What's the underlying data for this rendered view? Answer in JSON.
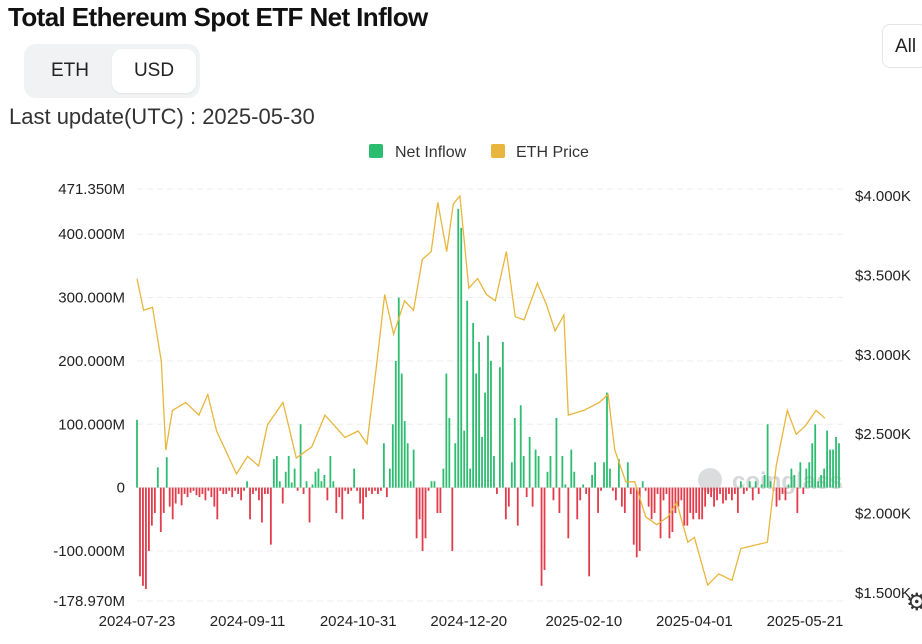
{
  "header": {
    "title": "Total Ethereum Spot ETF Net Inflow",
    "range_button": "All",
    "unit_toggle": [
      "ETH",
      "USD"
    ],
    "unit_selected": "USD",
    "last_update": "Last update(UTC) : 2025-05-30",
    "settings_icon": "gear-icon"
  },
  "watermark": "coinglass",
  "colors": {
    "inflow_positive": "#2dbd70",
    "inflow_negative": "#e23b4a",
    "price_line": "#e8b63c"
  },
  "chart_data": {
    "type": "bar",
    "legend": [
      {
        "name": "Net Inflow",
        "color": "#2dbd70"
      },
      {
        "name": "ETH Price",
        "color": "#e8b63c"
      }
    ],
    "legend_position": "top-center",
    "grid": true,
    "x_ticks": [
      "2024-07-23",
      "2024-09-11",
      "2024-10-31",
      "2024-12-20",
      "2025-02-10",
      "2025-04-01",
      "2025-05-21"
    ],
    "y_left": {
      "ticks": [
        471.35,
        400,
        300,
        200,
        100,
        0,
        -100,
        -178.97
      ],
      "tick_labels": [
        "471.350M",
        "400.000M",
        "300.000M",
        "200.000M",
        "100.000M",
        "0",
        "-100.000M",
        "-178.970M"
      ],
      "range": [
        -178.97,
        471.35
      ],
      "unit": "M USD"
    },
    "y_right": {
      "ticks": [
        4000,
        3500,
        3000,
        2500,
        2000,
        1500
      ],
      "tick_labels": [
        "$4.000K",
        "$3.500K",
        "$3.000K",
        "$2.500K",
        "$2.000K",
        "$1.500K"
      ],
      "range": [
        1500,
        4000
      ]
    },
    "series": [
      {
        "name": "Net Inflow",
        "values": [
          107,
          -140,
          -155,
          -160,
          -100,
          -60,
          -40,
          32,
          -70,
          -40,
          48,
          -30,
          -50,
          -25,
          -10,
          -28,
          -10,
          -15,
          -8,
          -5,
          -12,
          -15,
          -10,
          -20,
          -5,
          -15,
          -30,
          -50,
          -5,
          -10,
          -10,
          -5,
          -15,
          -5,
          -10,
          -20,
          -5,
          10,
          -50,
          -10,
          -5,
          -20,
          -55,
          -10,
          -10,
          -90,
          45,
          50,
          10,
          -25,
          25,
          50,
          8,
          30,
          -5,
          100,
          -10,
          10,
          -55,
          5,
          25,
          30,
          10,
          20,
          -20,
          50,
          10,
          -40,
          -15,
          -50,
          -5,
          -10,
          -5,
          30,
          -5,
          -25,
          -50,
          -15,
          -5,
          -10,
          -5,
          -10,
          -5,
          70,
          -15,
          30,
          100,
          200,
          300,
          180,
          105,
          70,
          10,
          60,
          -80,
          -50,
          -100,
          -80,
          -5,
          10,
          10,
          -40,
          -40,
          30,
          180,
          110,
          -100,
          70,
          440,
          410,
          90,
          295,
          30,
          260,
          180,
          230,
          80,
          150,
          240,
          200,
          50,
          -10,
          190,
          230,
          -50,
          -30,
          40,
          110,
          -60,
          130,
          50,
          -15,
          80,
          -30,
          60,
          50,
          -155,
          -130,
          25,
          50,
          -20,
          110,
          -40,
          50,
          5,
          -80,
          60,
          25,
          -50,
          -20,
          5,
          -10,
          -140,
          20,
          40,
          -40,
          -5,
          40,
          150,
          30,
          -5,
          -20,
          45,
          -30,
          -40,
          40,
          -10,
          -90,
          -110,
          -100,
          10,
          -5,
          -30,
          -50,
          -40,
          -10,
          -80,
          -20,
          -10,
          -80,
          -70,
          -40,
          -30,
          -20,
          -60,
          -60,
          -40,
          -50,
          -40,
          -50,
          -50,
          -30,
          -10,
          -15,
          -30,
          -20,
          -10,
          -25,
          -20,
          -10,
          -20,
          -10,
          -40,
          10,
          -10,
          -5,
          10,
          -20,
          10,
          -10,
          5,
          20,
          100,
          10,
          -5,
          -30,
          -20,
          -10,
          -20,
          5,
          30,
          20,
          -40,
          40,
          -10,
          30,
          40,
          70,
          100,
          10,
          20,
          30,
          90,
          60,
          60,
          80,
          70
        ]
      },
      {
        "name": "ETH Price",
        "points": [
          [
            "2024-07-23",
            3480
          ],
          [
            "2024-07-26",
            3280
          ],
          [
            "2024-07-30",
            3300
          ],
          [
            "2024-08-03",
            2960
          ],
          [
            "2024-08-05",
            2400
          ],
          [
            "2024-08-08",
            2650
          ],
          [
            "2024-08-14",
            2700
          ],
          [
            "2024-08-20",
            2620
          ],
          [
            "2024-08-24",
            2750
          ],
          [
            "2024-08-28",
            2520
          ],
          [
            "2024-09-06",
            2250
          ],
          [
            "2024-09-11",
            2360
          ],
          [
            "2024-09-16",
            2300
          ],
          [
            "2024-09-20",
            2560
          ],
          [
            "2024-09-27",
            2700
          ],
          [
            "2024-10-03",
            2350
          ],
          [
            "2024-10-10",
            2420
          ],
          [
            "2024-10-16",
            2620
          ],
          [
            "2024-10-25",
            2480
          ],
          [
            "2024-10-31",
            2520
          ],
          [
            "2024-11-04",
            2440
          ],
          [
            "2024-11-08",
            2900
          ],
          [
            "2024-11-12",
            3380
          ],
          [
            "2024-11-16",
            3130
          ],
          [
            "2024-11-21",
            3340
          ],
          [
            "2024-11-25",
            3280
          ],
          [
            "2024-11-29",
            3600
          ],
          [
            "2024-12-03",
            3650
          ],
          [
            "2024-12-06",
            3960
          ],
          [
            "2024-12-10",
            3650
          ],
          [
            "2024-12-13",
            3950
          ],
          [
            "2024-12-16",
            4000
          ],
          [
            "2024-12-20",
            3420
          ],
          [
            "2024-12-24",
            3480
          ],
          [
            "2024-12-28",
            3380
          ],
          [
            "2025-01-01",
            3340
          ],
          [
            "2025-01-06",
            3650
          ],
          [
            "2025-01-10",
            3240
          ],
          [
            "2025-01-14",
            3220
          ],
          [
            "2025-01-20",
            3450
          ],
          [
            "2025-01-24",
            3320
          ],
          [
            "2025-01-28",
            3150
          ],
          [
            "2025-02-01",
            3250
          ],
          [
            "2025-02-03",
            2620
          ],
          [
            "2025-02-10",
            2650
          ],
          [
            "2025-02-17",
            2700
          ],
          [
            "2025-02-21",
            2750
          ],
          [
            "2025-02-24",
            2400
          ],
          [
            "2025-03-01",
            2200
          ],
          [
            "2025-03-05",
            2200
          ],
          [
            "2025-03-10",
            1980
          ],
          [
            "2025-03-15",
            1930
          ],
          [
            "2025-03-20",
            1980
          ],
          [
            "2025-03-24",
            2070
          ],
          [
            "2025-03-29",
            1820
          ],
          [
            "2025-04-01",
            1850
          ],
          [
            "2025-04-07",
            1550
          ],
          [
            "2025-04-12",
            1620
          ],
          [
            "2025-04-18",
            1580
          ],
          [
            "2025-04-22",
            1780
          ],
          [
            "2025-04-28",
            1800
          ],
          [
            "2025-05-04",
            1820
          ],
          [
            "2025-05-08",
            2300
          ],
          [
            "2025-05-13",
            2650
          ],
          [
            "2025-05-17",
            2500
          ],
          [
            "2025-05-21",
            2550
          ],
          [
            "2025-05-26",
            2650
          ],
          [
            "2025-05-30",
            2600
          ]
        ]
      }
    ]
  }
}
